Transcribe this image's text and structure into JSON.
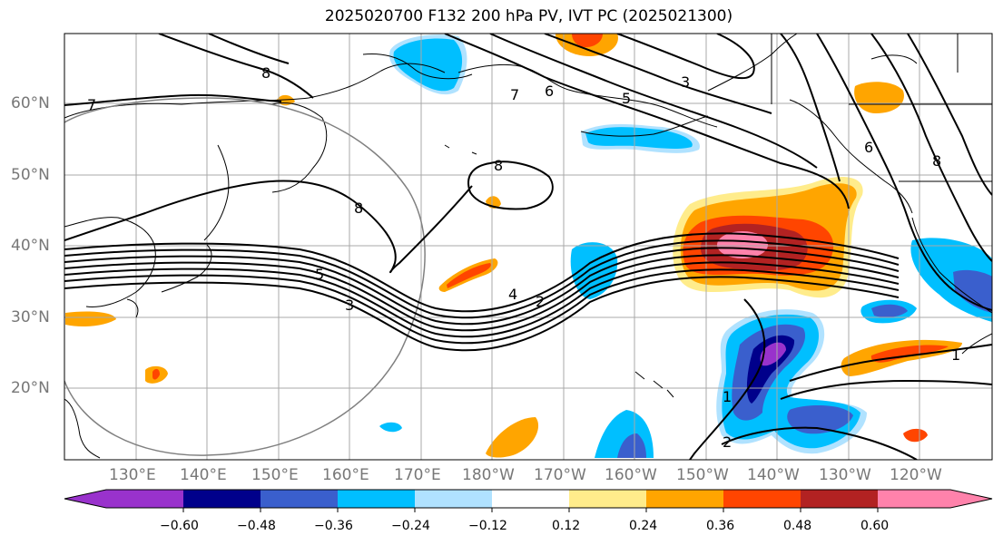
{
  "title": "2025020700 F132 200 hPa PV, IVT PC (2025021300)",
  "lat_labels": [
    "60°N",
    "50°N",
    "40°N",
    "30°N",
    "20°N"
  ],
  "lon_labels": [
    "130°E",
    "140°E",
    "150°E",
    "160°E",
    "170°E",
    "180°W",
    "170°W",
    "160°W",
    "150°W",
    "140°W",
    "130°W",
    "120°W"
  ],
  "contour_labels": [
    "8",
    "7",
    "7",
    "6",
    "5",
    "3",
    "8",
    "8",
    "5",
    "3",
    "4",
    "2",
    "6",
    "8",
    "1",
    "1",
    "2"
  ],
  "colorbar": {
    "colors": [
      "#9932CC",
      "#00008B",
      "#3A5FCD",
      "#00BFFF",
      "#B0E2FF",
      "#FFFFFF",
      "#FFEC8B",
      "#FFA500",
      "#FF4500",
      "#B22222",
      "#FF82AB"
    ],
    "tick_labels": [
      "−0.60",
      "−0.48",
      "−0.36",
      "−0.24",
      "−0.12",
      "0.12",
      "0.24",
      "0.36",
      "0.48",
      "0.60"
    ]
  },
  "colors": {
    "grid": "#A9A9A9",
    "contour": "#000000",
    "coastline": "#000000",
    "range_ring": "#808080"
  }
}
